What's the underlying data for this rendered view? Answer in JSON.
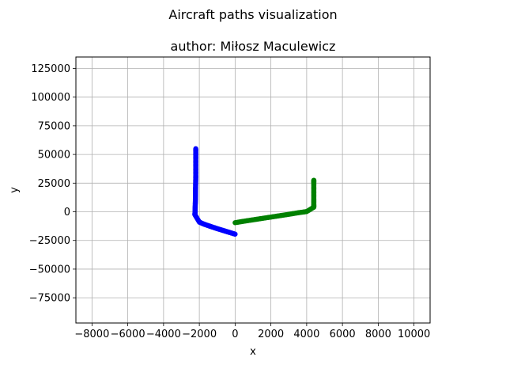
{
  "chart_data": {
    "type": "scatter",
    "title": "Aircraft paths visualization",
    "subtitle": "author: Miłosz Maculewicz",
    "xlabel": "x",
    "ylabel": "y",
    "xlim": [
      -8900,
      10900
    ],
    "ylim": [
      -97000,
      135000
    ],
    "xticks": [
      -8000,
      -6000,
      -4000,
      -2000,
      0,
      2000,
      4000,
      6000,
      8000,
      10000
    ],
    "yticks": [
      -75000,
      -50000,
      -25000,
      0,
      25000,
      50000,
      75000,
      100000,
      125000
    ],
    "xtick_labels": [
      "−8000",
      "−6000",
      "−4000",
      "−2000",
      "0",
      "2000",
      "4000",
      "6000",
      "8000",
      "10000"
    ],
    "ytick_labels": [
      "−75000",
      "−50000",
      "−25000",
      "0",
      "25000",
      "50000",
      "75000",
      "100000",
      "125000"
    ],
    "grid": true,
    "series": [
      {
        "color": "#0000ff",
        "points": [
          [
            0,
            -19500
          ],
          [
            -250,
            -18300
          ],
          [
            -500,
            -17100
          ],
          [
            -750,
            -15900
          ],
          [
            -1000,
            -14700
          ],
          [
            -1250,
            -13400
          ],
          [
            -1500,
            -12100
          ],
          [
            -1750,
            -10700
          ],
          [
            -2000,
            -9000
          ],
          [
            -2250,
            -2500
          ],
          [
            -2240,
            0
          ],
          [
            -2230,
            5000
          ],
          [
            -2220,
            10000
          ],
          [
            -2215,
            15000
          ],
          [
            -2210,
            20000
          ],
          [
            -2205,
            25000
          ],
          [
            -2200,
            30000
          ],
          [
            -2200,
            35000
          ],
          [
            -2200,
            40000
          ],
          [
            -2200,
            45000
          ],
          [
            -2200,
            50000
          ],
          [
            -2200,
            55000
          ]
        ]
      },
      {
        "color": "#008000",
        "points": [
          [
            0,
            -9500
          ],
          [
            500,
            -8200
          ],
          [
            1000,
            -7000
          ],
          [
            1500,
            -5800
          ],
          [
            2000,
            -4600
          ],
          [
            2500,
            -3400
          ],
          [
            3000,
            -2200
          ],
          [
            3500,
            -900
          ],
          [
            4000,
            200
          ],
          [
            4400,
            4000
          ],
          [
            4400,
            6000
          ],
          [
            4400,
            10000
          ],
          [
            4400,
            15000
          ],
          [
            4400,
            20000
          ],
          [
            4400,
            25000
          ],
          [
            4400,
            27500
          ]
        ]
      }
    ]
  }
}
